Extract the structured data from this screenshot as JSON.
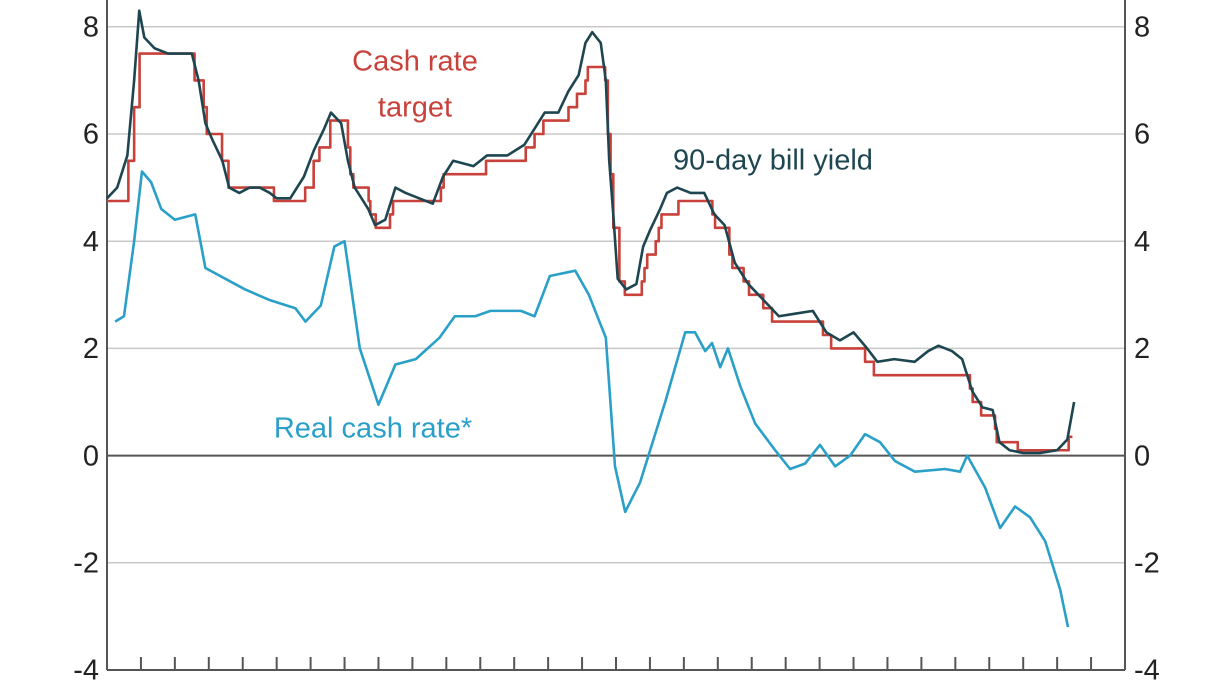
{
  "chart_data": {
    "type": "line",
    "xlim": [
      1994,
      2024
    ],
    "xticks": [
      1995,
      1996,
      1997,
      1998,
      1999,
      2000,
      2001,
      2002,
      2003,
      2004,
      2005,
      2006,
      2007,
      2008,
      2009,
      2010,
      2011,
      2012,
      2013,
      2014,
      2015,
      2016,
      2017,
      2018,
      2019,
      2020,
      2021,
      2022,
      2023
    ],
    "ylim": [
      -4,
      8.5
    ],
    "yticks": [
      -4,
      -2,
      0,
      2,
      4,
      6,
      8
    ],
    "y2lim": [
      -4,
      8.5
    ],
    "y2ticks": [
      -4,
      -2,
      0,
      2,
      4,
      6,
      8
    ],
    "grid": true,
    "annotations": [
      {
        "lines": [
          "Cash rate",
          "target"
        ],
        "series": 0
      },
      {
        "lines": [
          "90-day bill yield"
        ],
        "series": 1
      },
      {
        "lines": [
          "Real cash rate*"
        ],
        "series": 2
      }
    ],
    "series": [
      {
        "name": "Cash rate target",
        "color": "#c8413a",
        "step": true,
        "x": [
          1994.0,
          1994.63,
          1994.8,
          1994.96,
          1996.58,
          1996.85,
          1996.94,
          1997.39,
          1997.58,
          1998.92,
          1999.84,
          2000.09,
          2000.26,
          2000.58,
          2001.1,
          2001.17,
          2001.26,
          2001.71,
          2001.76,
          2001.92,
          2002.34,
          2002.43,
          2003.84,
          2003.92,
          2005.17,
          2006.34,
          2006.6,
          2006.86,
          2007.6,
          2007.85,
          2008.1,
          2008.17,
          2008.68,
          2008.76,
          2008.84,
          2008.92,
          2009.1,
          2009.26,
          2009.76,
          2009.84,
          2009.92,
          2010.17,
          2010.26,
          2010.34,
          2010.84,
          2011.84,
          2011.92,
          2012.34,
          2012.43,
          2012.76,
          2012.92,
          2013.34,
          2013.6,
          2015.1,
          2015.34,
          2016.34,
          2016.6,
          2019.43,
          2019.51,
          2019.76,
          2020.17,
          2020.22,
          2020.84,
          2022.34,
          2022.45
        ],
        "values": [
          4.75,
          5.5,
          6.5,
          7.5,
          7.0,
          6.5,
          6.0,
          5.5,
          5.0,
          4.75,
          5.0,
          5.5,
          5.75,
          6.25,
          5.75,
          5.25,
          5.0,
          4.75,
          4.5,
          4.25,
          4.5,
          4.75,
          5.0,
          5.25,
          5.5,
          5.75,
          6.0,
          6.25,
          6.5,
          6.75,
          7.0,
          7.25,
          7.0,
          6.0,
          5.25,
          4.25,
          3.25,
          3.0,
          3.25,
          3.5,
          3.75,
          4.0,
          4.25,
          4.5,
          4.75,
          4.5,
          4.25,
          3.75,
          3.5,
          3.25,
          3.0,
          2.75,
          2.5,
          2.25,
          2.0,
          1.75,
          1.5,
          1.25,
          1.0,
          0.75,
          0.5,
          0.25,
          0.1,
          0.35,
          0.35
        ]
      },
      {
        "name": "90-day bill yield",
        "color": "#1e4650",
        "x": [
          1994.0,
          1994.3,
          1994.6,
          1994.8,
          1994.95,
          1995.1,
          1995.4,
          1995.8,
          1996.2,
          1996.5,
          1996.7,
          1996.9,
          1997.1,
          1997.4,
          1997.6,
          1997.9,
          1998.2,
          1998.5,
          1998.8,
          1999.0,
          1999.4,
          1999.8,
          2000.1,
          2000.4,
          2000.6,
          2000.9,
          2001.1,
          2001.3,
          2001.7,
          2001.9,
          2002.2,
          2002.5,
          2002.8,
          2003.2,
          2003.6,
          2003.9,
          2004.2,
          2004.8,
          2005.2,
          2005.8,
          2006.3,
          2006.6,
          2006.9,
          2007.3,
          2007.6,
          2007.9,
          2008.1,
          2008.3,
          2008.55,
          2008.7,
          2008.8,
          2008.92,
          2009.05,
          2009.3,
          2009.6,
          2009.8,
          2010.0,
          2010.3,
          2010.5,
          2010.8,
          2011.2,
          2011.6,
          2011.9,
          2012.2,
          2012.5,
          2012.9,
          2013.2,
          2013.5,
          2013.8,
          2014.3,
          2014.8,
          2015.2,
          2015.6,
          2016.0,
          2016.4,
          2016.7,
          2017.2,
          2017.8,
          2018.2,
          2018.5,
          2018.9,
          2019.2,
          2019.5,
          2019.8,
          2020.1,
          2020.3,
          2020.6,
          2021.0,
          2021.5,
          2022.0,
          2022.3,
          2022.5
        ],
        "values": [
          4.8,
          5.0,
          5.6,
          7.0,
          8.3,
          7.8,
          7.6,
          7.5,
          7.5,
          7.5,
          7.0,
          6.2,
          5.9,
          5.5,
          5.0,
          4.9,
          5.0,
          5.0,
          4.9,
          4.8,
          4.8,
          5.2,
          5.7,
          6.1,
          6.4,
          6.2,
          5.5,
          5.0,
          4.6,
          4.3,
          4.4,
          5.0,
          4.9,
          4.8,
          4.7,
          5.2,
          5.5,
          5.4,
          5.6,
          5.6,
          5.8,
          6.1,
          6.4,
          6.4,
          6.8,
          7.1,
          7.7,
          7.9,
          7.7,
          7.0,
          5.5,
          4.5,
          3.3,
          3.1,
          3.2,
          3.9,
          4.2,
          4.6,
          4.9,
          5.0,
          4.9,
          4.9,
          4.5,
          4.3,
          3.6,
          3.2,
          3.0,
          2.8,
          2.6,
          2.65,
          2.7,
          2.3,
          2.15,
          2.3,
          2.0,
          1.75,
          1.8,
          1.75,
          1.95,
          2.05,
          1.95,
          1.8,
          1.2,
          0.9,
          0.85,
          0.25,
          0.1,
          0.05,
          0.05,
          0.1,
          0.3,
          1.0
        ]
      },
      {
        "name": "Real cash rate*",
        "color": "#2aa0c8",
        "x": [
          1994.24,
          1994.5,
          1994.8,
          1995.03,
          1995.3,
          1995.6,
          1996.0,
          1996.6,
          1996.9,
          1998.07,
          1998.8,
          1999.55,
          1999.85,
          2000.3,
          2000.7,
          2001.0,
          2001.45,
          2002.0,
          2002.5,
          2003.1,
          2003.8,
          2004.25,
          2004.85,
          2005.3,
          2006.2,
          2006.6,
          2007.05,
          2007.8,
          2008.2,
          2008.7,
          2008.97,
          2009.27,
          2009.71,
          2010.45,
          2011.04,
          2011.33,
          2011.63,
          2011.83,
          2012.07,
          2012.3,
          2012.66,
          2013.1,
          2013.69,
          2014.13,
          2014.57,
          2015.01,
          2015.46,
          2015.9,
          2016.34,
          2016.78,
          2017.22,
          2017.81,
          2018.7,
          2019.14,
          2019.35,
          2019.88,
          2020.32,
          2020.76,
          2021.2,
          2021.65,
          2022.09,
          2022.32
        ],
        "values": [
          2.5,
          2.6,
          4.0,
          5.3,
          5.1,
          4.6,
          4.4,
          4.5,
          3.5,
          3.1,
          2.9,
          2.75,
          2.5,
          2.8,
          3.9,
          4.0,
          2.0,
          0.95,
          1.7,
          1.8,
          2.2,
          2.6,
          2.6,
          2.7,
          2.7,
          2.6,
          3.35,
          3.45,
          3.0,
          2.2,
          -0.2,
          -1.05,
          -0.5,
          1.0,
          2.3,
          2.3,
          1.95,
          2.1,
          1.65,
          2.0,
          1.3,
          0.6,
          0.1,
          -0.25,
          -0.15,
          0.2,
          -0.2,
          0.0,
          0.4,
          0.25,
          -0.1,
          -0.3,
          -0.25,
          -0.3,
          0.0,
          -0.6,
          -1.35,
          -0.95,
          -1.15,
          -1.6,
          -2.5,
          -3.2
        ]
      }
    ]
  }
}
